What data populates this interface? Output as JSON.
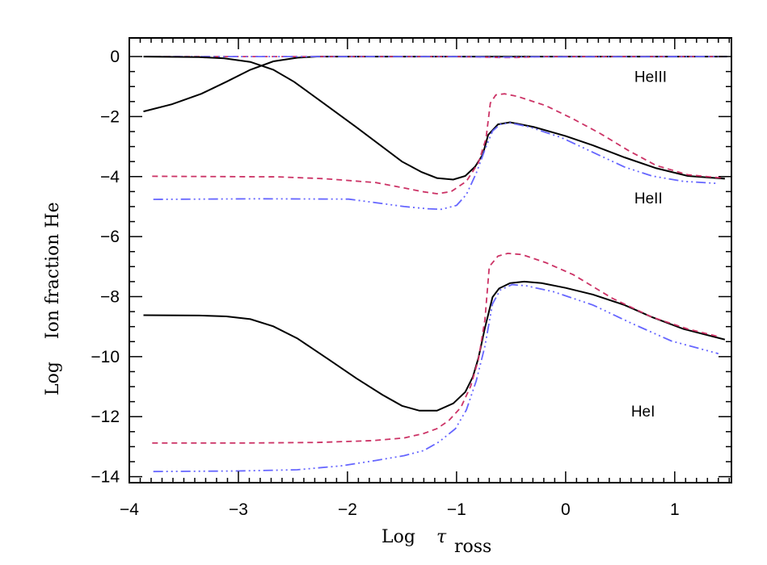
{
  "chart_data": {
    "type": "line",
    "title": "",
    "xlabel": "Log",
    "xlabel_symbol": "τ",
    "xlabel_subscript": "ross",
    "ylabel": "Log    Ion fraction He",
    "xlim": [
      -4,
      1.52
    ],
    "ylim": [
      -14.2,
      0.62
    ],
    "x_ticks": [
      -4,
      -3,
      -2,
      -1,
      0,
      1
    ],
    "x_tick_labels": [
      "−4",
      "−3",
      "−2",
      "−1",
      "0",
      "1"
    ],
    "y_ticks": [
      0,
      -2,
      -4,
      -6,
      -8,
      -10,
      -12,
      -14
    ],
    "y_tick_labels": [
      "0",
      "−2",
      "−4",
      "−6",
      "−8",
      "−10",
      "−12",
      "−14"
    ],
    "grid": false,
    "annotations": [
      {
        "text": "HeIII",
        "x": 0.63,
        "y": -0.85
      },
      {
        "text": "HeII",
        "x": 0.63,
        "y": -4.9
      },
      {
        "text": "HeI",
        "x": 0.6,
        "y": -12.0
      }
    ],
    "colors": {
      "solid": "#000000",
      "dashed": "#cc3366",
      "dashdot": "#6666ff"
    },
    "series": [
      {
        "ion": "HeIII",
        "style": "solid",
        "points": [
          [
            -3.87,
            -1.83
          ],
          [
            -3.61,
            -1.59
          ],
          [
            -3.34,
            -1.24
          ],
          [
            -3.11,
            -0.84
          ],
          [
            -2.89,
            -0.44
          ],
          [
            -2.68,
            -0.16
          ],
          [
            -2.46,
            -0.04
          ],
          [
            -2.28,
            0
          ],
          [
            -1.5,
            0
          ],
          [
            0,
            0
          ],
          [
            1.48,
            0
          ]
        ]
      },
      {
        "ion": "HeIII",
        "style": "dashed",
        "points": [
          [
            -3.85,
            0
          ],
          [
            -1,
            0
          ],
          [
            -0.6,
            -0.03
          ],
          [
            -0.45,
            -0.03
          ],
          [
            -0.2,
            0
          ],
          [
            1.48,
            0
          ]
        ]
      },
      {
        "ion": "HeIII",
        "style": "dashdot",
        "points": [
          [
            -3.85,
            0
          ],
          [
            -1,
            0
          ],
          [
            -0.6,
            -0.02
          ],
          [
            -0.3,
            -0.01
          ],
          [
            1.48,
            0
          ]
        ]
      },
      {
        "ion": "HeII",
        "style": "solid",
        "points": [
          [
            -3.87,
            0
          ],
          [
            -3.36,
            -0.02
          ],
          [
            -3.13,
            -0.06
          ],
          [
            -2.89,
            -0.18
          ],
          [
            -2.68,
            -0.44
          ],
          [
            -2.49,
            -0.84
          ],
          [
            -2.24,
            -1.5
          ],
          [
            -1.92,
            -2.35
          ],
          [
            -1.5,
            -3.5
          ],
          [
            -1.32,
            -3.85
          ],
          [
            -1.18,
            -4.05
          ],
          [
            -1.03,
            -4.1
          ],
          [
            -0.92,
            -3.98
          ],
          [
            -0.83,
            -3.67
          ],
          [
            -0.76,
            -3.27
          ],
          [
            -0.71,
            -2.61
          ],
          [
            -0.62,
            -2.26
          ],
          [
            -0.51,
            -2.19
          ],
          [
            -0.29,
            -2.35
          ],
          [
            0,
            -2.65
          ],
          [
            0.25,
            -2.96
          ],
          [
            0.54,
            -3.36
          ],
          [
            0.83,
            -3.72
          ],
          [
            1.12,
            -3.98
          ],
          [
            1.46,
            -4.07
          ]
        ]
      },
      {
        "ion": "HeII",
        "style": "dashed",
        "points": [
          [
            -3.79,
            -3.99
          ],
          [
            -2.64,
            -4.01
          ],
          [
            -2.21,
            -4.07
          ],
          [
            -1.74,
            -4.2
          ],
          [
            -1.48,
            -4.38
          ],
          [
            -1.3,
            -4.51
          ],
          [
            -1.18,
            -4.57
          ],
          [
            -1.05,
            -4.5
          ],
          [
            -0.91,
            -4.16
          ],
          [
            -0.8,
            -3.54
          ],
          [
            -0.73,
            -2.74
          ],
          [
            -0.69,
            -1.55
          ],
          [
            -0.64,
            -1.28
          ],
          [
            -0.56,
            -1.24
          ],
          [
            -0.44,
            -1.33
          ],
          [
            -0.18,
            -1.64
          ],
          [
            0.07,
            -2.08
          ],
          [
            0.32,
            -2.57
          ],
          [
            0.58,
            -3.14
          ],
          [
            0.83,
            -3.63
          ],
          [
            1.12,
            -3.94
          ],
          [
            1.44,
            -4.05
          ]
        ]
      },
      {
        "ion": "HeII",
        "style": "dashdot",
        "points": [
          [
            -3.78,
            -4.76
          ],
          [
            -2.82,
            -4.74
          ],
          [
            -1.99,
            -4.75
          ],
          [
            -1.74,
            -4.87
          ],
          [
            -1.48,
            -5.0
          ],
          [
            -1.27,
            -5.07
          ],
          [
            -1.14,
            -5.09
          ],
          [
            -1.0,
            -4.96
          ],
          [
            -0.91,
            -4.6
          ],
          [
            -0.82,
            -3.89
          ],
          [
            -0.74,
            -3.1
          ],
          [
            -0.67,
            -2.48
          ],
          [
            -0.6,
            -2.26
          ],
          [
            -0.51,
            -2.21
          ],
          [
            -0.33,
            -2.35
          ],
          [
            -0.04,
            -2.7
          ],
          [
            0.25,
            -3.19
          ],
          [
            0.54,
            -3.68
          ],
          [
            0.79,
            -3.98
          ],
          [
            1.08,
            -4.16
          ],
          [
            1.4,
            -4.23
          ]
        ]
      },
      {
        "ion": "HeI",
        "style": "solid",
        "points": [
          [
            -3.87,
            -8.62
          ],
          [
            -3.36,
            -8.63
          ],
          [
            -3.11,
            -8.66
          ],
          [
            -2.89,
            -8.75
          ],
          [
            -2.68,
            -8.99
          ],
          [
            -2.46,
            -9.39
          ],
          [
            -2.17,
            -10.1
          ],
          [
            -1.92,
            -10.72
          ],
          [
            -1.68,
            -11.27
          ],
          [
            -1.5,
            -11.64
          ],
          [
            -1.34,
            -11.8
          ],
          [
            -1.18,
            -11.8
          ],
          [
            -1.03,
            -11.56
          ],
          [
            -0.92,
            -11.18
          ],
          [
            -0.85,
            -10.67
          ],
          [
            -0.8,
            -10.05
          ],
          [
            -0.74,
            -9.04
          ],
          [
            -0.67,
            -8.02
          ],
          [
            -0.61,
            -7.73
          ],
          [
            -0.51,
            -7.55
          ],
          [
            -0.38,
            -7.5
          ],
          [
            -0.22,
            -7.55
          ],
          [
            0,
            -7.71
          ],
          [
            0.25,
            -7.93
          ],
          [
            0.54,
            -8.28
          ],
          [
            0.79,
            -8.68
          ],
          [
            1.08,
            -9.08
          ],
          [
            1.46,
            -9.43
          ]
        ]
      },
      {
        "ion": "HeI",
        "style": "dashed",
        "points": [
          [
            -3.79,
            -12.88
          ],
          [
            -3.0,
            -12.88
          ],
          [
            -2.28,
            -12.86
          ],
          [
            -1.77,
            -12.8
          ],
          [
            -1.48,
            -12.71
          ],
          [
            -1.3,
            -12.56
          ],
          [
            -1.18,
            -12.4
          ],
          [
            -1.07,
            -12.13
          ],
          [
            -0.96,
            -11.69
          ],
          [
            -0.87,
            -10.98
          ],
          [
            -0.8,
            -10.1
          ],
          [
            -0.74,
            -8.77
          ],
          [
            -0.7,
            -7.0
          ],
          [
            -0.62,
            -6.65
          ],
          [
            -0.53,
            -6.56
          ],
          [
            -0.4,
            -6.6
          ],
          [
            -0.18,
            -6.87
          ],
          [
            0.07,
            -7.27
          ],
          [
            0.43,
            -8.06
          ],
          [
            0.79,
            -8.68
          ],
          [
            1.12,
            -9.08
          ],
          [
            1.42,
            -9.35
          ]
        ]
      },
      {
        "ion": "HeI",
        "style": "dashdot",
        "points": [
          [
            -3.78,
            -13.83
          ],
          [
            -3.0,
            -13.81
          ],
          [
            -2.46,
            -13.77
          ],
          [
            -2.06,
            -13.64
          ],
          [
            -1.74,
            -13.46
          ],
          [
            -1.48,
            -13.3
          ],
          [
            -1.3,
            -13.13
          ],
          [
            -1.16,
            -12.84
          ],
          [
            -1.01,
            -12.4
          ],
          [
            -0.91,
            -11.78
          ],
          [
            -0.82,
            -10.81
          ],
          [
            -0.74,
            -9.65
          ],
          [
            -0.67,
            -8.24
          ],
          [
            -0.6,
            -7.78
          ],
          [
            -0.49,
            -7.6
          ],
          [
            -0.36,
            -7.64
          ],
          [
            -0.11,
            -7.84
          ],
          [
            0.25,
            -8.28
          ],
          [
            0.61,
            -8.9
          ],
          [
            0.97,
            -9.48
          ],
          [
            1.4,
            -9.9
          ]
        ]
      }
    ]
  }
}
